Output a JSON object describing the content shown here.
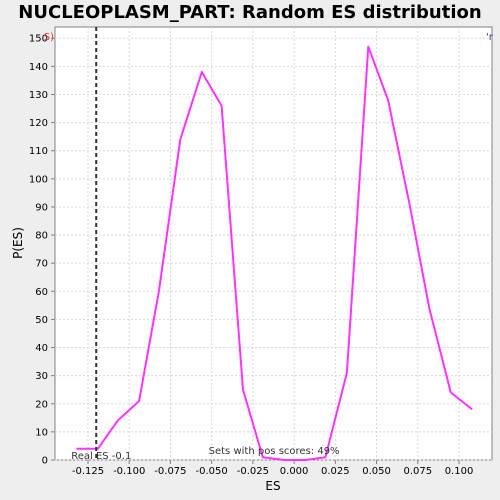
{
  "chart_data": {
    "type": "line",
    "title": "NUCLEOPLASM_PART: Random ES distribution",
    "xlabel": "ES",
    "ylabel": "P(ES)",
    "xlim": [
      -0.145,
      0.12
    ],
    "ylim": [
      0,
      154
    ],
    "x_ticks": [
      -0.125,
      -0.1,
      -0.075,
      -0.05,
      -0.025,
      0.0,
      0.025,
      0.05,
      0.075,
      0.1
    ],
    "x_tick_labels": [
      "-0.125",
      "-0.100",
      "-0.075",
      "-0.050",
      "-0.025",
      "0.000",
      "0.025",
      "0.050",
      "0.075",
      "0.100"
    ],
    "y_ticks": [
      0,
      10,
      20,
      30,
      40,
      50,
      60,
      70,
      80,
      90,
      100,
      110,
      120,
      130,
      140,
      150
    ],
    "y_tick_labels": [
      "0",
      "10",
      "20",
      "30",
      "40",
      "50",
      "60",
      "70",
      "80",
      "90",
      "100",
      "110",
      "120",
      "130",
      "140",
      "150"
    ],
    "grid": true,
    "series": [
      {
        "color": "#ff33ff",
        "x": [
          -0.132,
          -0.119,
          -0.107,
          -0.094,
          -0.082,
          -0.069,
          -0.056,
          -0.044,
          -0.031,
          -0.019,
          -0.006,
          0.007,
          0.019,
          0.032,
          0.045,
          0.057,
          0.07,
          0.082,
          0.095,
          0.108
        ],
        "y": [
          4,
          4,
          14,
          21,
          60,
          114,
          138,
          126,
          25,
          1,
          0,
          0,
          1,
          31,
          147,
          128,
          91,
          54,
          24,
          18
        ]
      }
    ],
    "marker_line": {
      "x": -0.12,
      "style": "dashed",
      "color": "#333333",
      "label": "Real ES -0.1"
    },
    "annotations": [
      {
        "text": "Sets with pos scores: 49%",
        "x": 0.0,
        "y": 1.5
      }
    ],
    "corner_left_text": "S)",
    "corner_right_text": "'r"
  }
}
